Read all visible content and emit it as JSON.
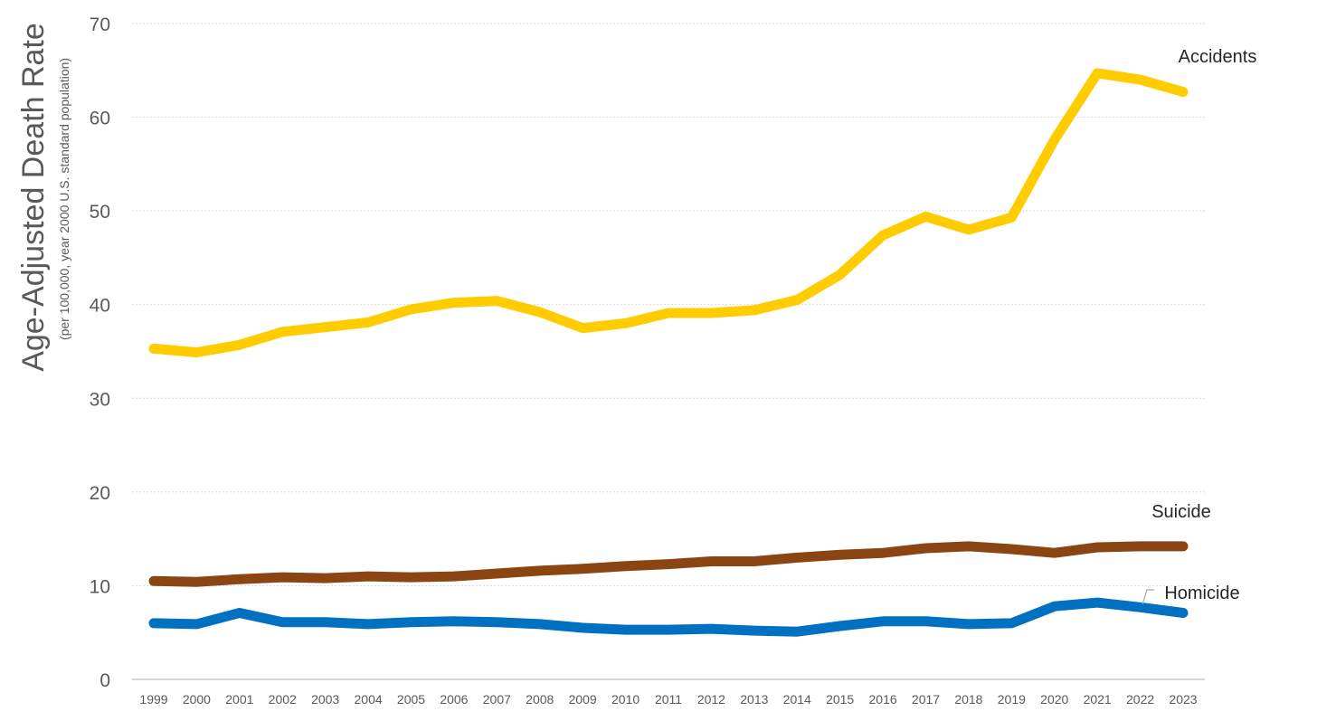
{
  "chart_data": {
    "type": "line",
    "title": "",
    "ylabel": "Age-Adjusted Death Rate",
    "ylabel_sub": "(per 100,000, year 2000 U.S. standard population)",
    "xlabel": "",
    "ylim": [
      0,
      70
    ],
    "yticks": [
      "0",
      "10",
      "20",
      "30",
      "40",
      "50",
      "60",
      "70"
    ],
    "grid": true,
    "x": [
      "1999",
      "2000",
      "2001",
      "2002",
      "2003",
      "2004",
      "2005",
      "2006",
      "2007",
      "2008",
      "2009",
      "2010",
      "2011",
      "2012",
      "2013",
      "2014",
      "2015",
      "2016",
      "2017",
      "2018",
      "2019",
      "2020",
      "2021",
      "2022",
      "2023"
    ],
    "series": [
      {
        "name": "Accidents",
        "color": "#FFCC00",
        "values": [
          35.3,
          34.9,
          35.7,
          37.1,
          37.6,
          38.1,
          39.5,
          40.2,
          40.4,
          39.2,
          37.5,
          38.0,
          39.1,
          39.1,
          39.4,
          40.5,
          43.2,
          47.4,
          49.4,
          48.0,
          49.3,
          57.6,
          64.7,
          64.0,
          62.7
        ]
      },
      {
        "name": "Suicide",
        "color": "#8B4513",
        "values": [
          10.5,
          10.4,
          10.7,
          10.9,
          10.8,
          11.0,
          10.9,
          11.0,
          11.3,
          11.6,
          11.8,
          12.1,
          12.3,
          12.6,
          12.6,
          13.0,
          13.3,
          13.5,
          14.0,
          14.2,
          13.9,
          13.5,
          14.1,
          14.2,
          14.2
        ]
      },
      {
        "name": "Homicide",
        "color": "#0070C0",
        "values": [
          6.0,
          5.9,
          7.1,
          6.1,
          6.1,
          5.9,
          6.1,
          6.2,
          6.1,
          5.9,
          5.5,
          5.3,
          5.3,
          5.4,
          5.2,
          5.1,
          5.7,
          6.2,
          6.2,
          5.9,
          6.0,
          7.8,
          8.2,
          7.7,
          7.1
        ]
      }
    ]
  }
}
